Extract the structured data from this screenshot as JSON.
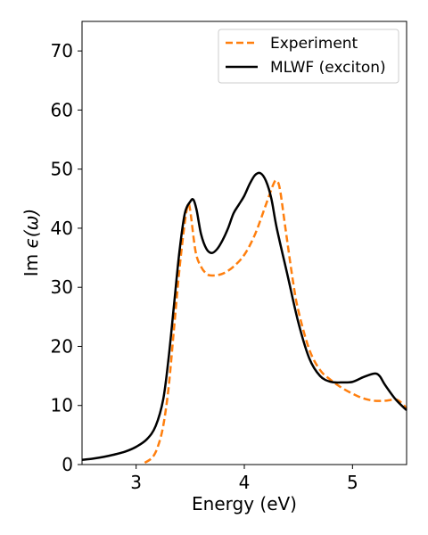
{
  "chart_data": {
    "type": "line",
    "xlabel": "Energy (eV)",
    "ylabel_prefix": "Im ",
    "ylabel_math": "ϵ(ω)",
    "xlim": [
      2.5,
      5.5
    ],
    "ylim": [
      0,
      75
    ],
    "x_ticks": [
      3,
      4,
      5
    ],
    "x_tick_labels": [
      "3",
      "4",
      "5"
    ],
    "y_ticks": [
      0,
      10,
      20,
      30,
      40,
      50,
      60,
      70
    ],
    "y_tick_labels": [
      "0",
      "10",
      "20",
      "30",
      "40",
      "50",
      "60",
      "70"
    ],
    "grid": false,
    "legend_position": "top-right",
    "series": [
      {
        "name": "Experiment",
        "color": "#ff7f0e",
        "style": "dashed",
        "points": [
          [
            3.08,
            0.3
          ],
          [
            3.15,
            1.2
          ],
          [
            3.2,
            3.0
          ],
          [
            3.25,
            6.5
          ],
          [
            3.3,
            13.0
          ],
          [
            3.35,
            23.0
          ],
          [
            3.4,
            33.0
          ],
          [
            3.45,
            41.0
          ],
          [
            3.48,
            44.0
          ],
          [
            3.5,
            43.0
          ],
          [
            3.55,
            36.0
          ],
          [
            3.6,
            33.5
          ],
          [
            3.65,
            32.3
          ],
          [
            3.7,
            32.0
          ],
          [
            3.8,
            32.3
          ],
          [
            3.9,
            33.5
          ],
          [
            4.0,
            35.5
          ],
          [
            4.1,
            39.0
          ],
          [
            4.2,
            44.0
          ],
          [
            4.27,
            47.5
          ],
          [
            4.3,
            48.0
          ],
          [
            4.33,
            46.5
          ],
          [
            4.38,
            40.0
          ],
          [
            4.45,
            31.0
          ],
          [
            4.5,
            26.0
          ],
          [
            4.6,
            19.5
          ],
          [
            4.7,
            16.0
          ],
          [
            4.8,
            14.3
          ],
          [
            4.9,
            13.0
          ],
          [
            5.0,
            12.0
          ],
          [
            5.1,
            11.2
          ],
          [
            5.2,
            10.8
          ],
          [
            5.3,
            10.8
          ],
          [
            5.4,
            11.0
          ],
          [
            5.45,
            10.5
          ],
          [
            5.5,
            9.5
          ]
        ]
      },
      {
        "name": "MLWF (exciton)",
        "color": "#000000",
        "style": "solid",
        "points": [
          [
            2.5,
            0.8
          ],
          [
            2.6,
            1.0
          ],
          [
            2.7,
            1.3
          ],
          [
            2.8,
            1.7
          ],
          [
            2.9,
            2.2
          ],
          [
            3.0,
            3.0
          ],
          [
            3.1,
            4.3
          ],
          [
            3.18,
            6.5
          ],
          [
            3.25,
            11.0
          ],
          [
            3.3,
            18.0
          ],
          [
            3.35,
            27.0
          ],
          [
            3.4,
            36.0
          ],
          [
            3.45,
            42.5
          ],
          [
            3.5,
            44.5
          ],
          [
            3.53,
            44.8
          ],
          [
            3.56,
            43.0
          ],
          [
            3.6,
            39.0
          ],
          [
            3.65,
            36.5
          ],
          [
            3.7,
            35.8
          ],
          [
            3.75,
            36.5
          ],
          [
            3.8,
            38.0
          ],
          [
            3.85,
            40.0
          ],
          [
            3.9,
            42.5
          ],
          [
            3.95,
            44.0
          ],
          [
            4.0,
            45.5
          ],
          [
            4.05,
            47.5
          ],
          [
            4.1,
            49.0
          ],
          [
            4.15,
            49.3
          ],
          [
            4.2,
            48.0
          ],
          [
            4.25,
            45.0
          ],
          [
            4.3,
            40.0
          ],
          [
            4.4,
            32.0
          ],
          [
            4.5,
            24.0
          ],
          [
            4.6,
            18.0
          ],
          [
            4.7,
            15.0
          ],
          [
            4.8,
            14.0
          ],
          [
            4.9,
            13.9
          ],
          [
            5.0,
            14.0
          ],
          [
            5.1,
            14.8
          ],
          [
            5.2,
            15.4
          ],
          [
            5.25,
            15.0
          ],
          [
            5.3,
            13.5
          ],
          [
            5.4,
            11.0
          ],
          [
            5.5,
            9.2
          ]
        ]
      }
    ]
  }
}
